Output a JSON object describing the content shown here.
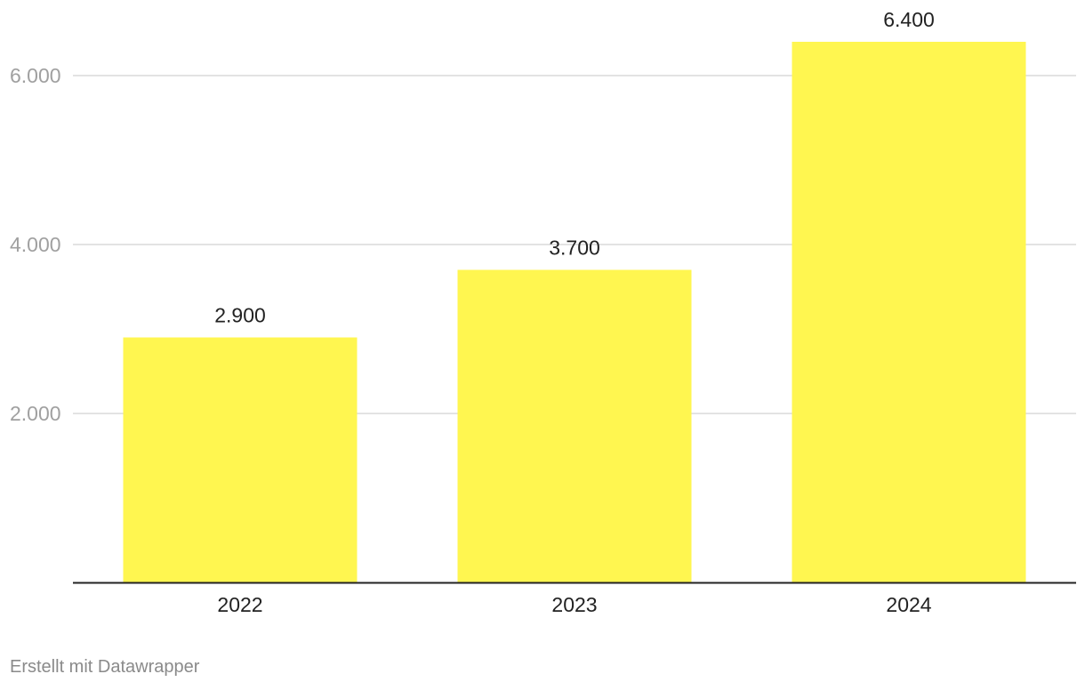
{
  "chart_data": {
    "type": "bar",
    "categories": [
      "2022",
      "2023",
      "2024"
    ],
    "values": [
      2900,
      3700,
      6400
    ],
    "value_labels": [
      "2.900",
      "3.700",
      "6.400"
    ],
    "yticks": [
      2000,
      4000,
      6000
    ],
    "ytick_labels": [
      "2.000",
      "4.000",
      "6.000"
    ],
    "ylim": [
      0,
      6400
    ],
    "grid": true,
    "bar_color": "#fff650",
    "gridline_color": "#e3e3e3",
    "baseline_color": "#222222",
    "tick_label_color": "#a0a0a0"
  },
  "footer": {
    "credit": "Erstellt mit Datawrapper"
  }
}
